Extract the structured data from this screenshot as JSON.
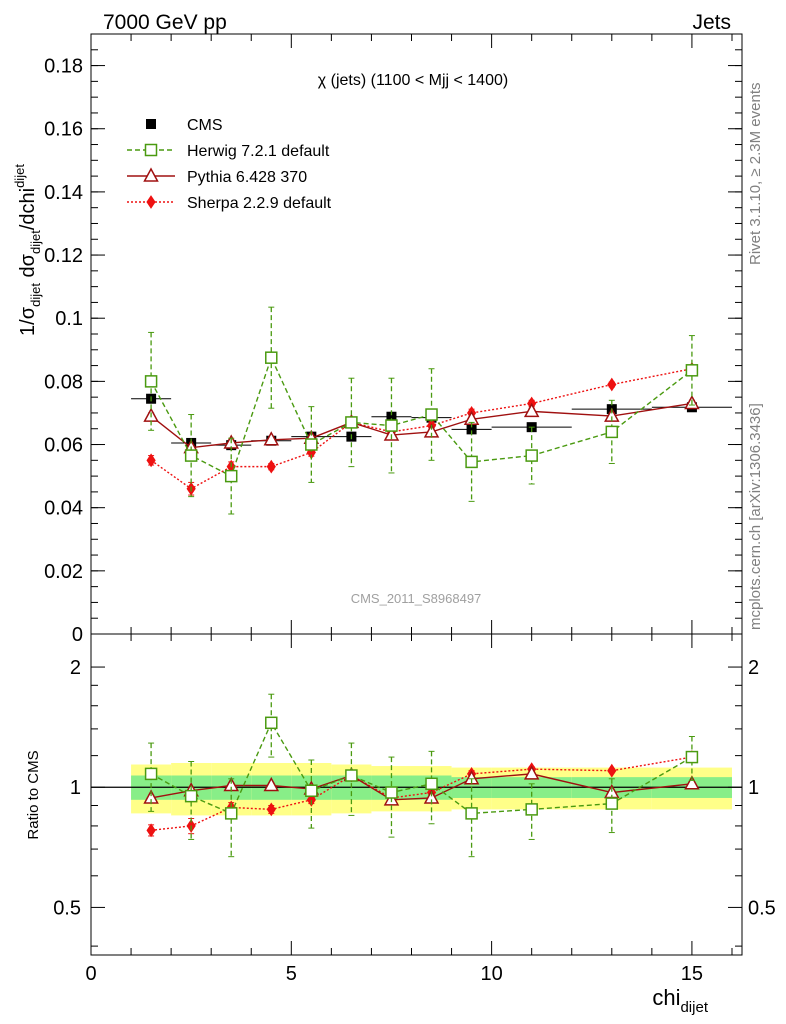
{
  "header": {
    "energy_label": "7000 GeV pp",
    "category_label": "Jets",
    "side_top": "Rivet 3.1.10, ≥ 2.3M events",
    "side_bottom": "mcplots.cern.ch [arXiv:1306.3436]",
    "watermark": "CMS_2011_S8968497"
  },
  "chart_data": [
    {
      "type": "line",
      "panel": "main",
      "title": "χ (jets) (1100 < Mjj < 1400)",
      "ylabel_main": "1/σ",
      "ylabel_sub1": "dijet",
      "ylabel_mid": " dσ",
      "ylabel_sub2": "dijet",
      "ylabel_end": "/dchi",
      "ylabel_sub3": "dijet",
      "xlim": [
        0,
        16.25
      ],
      "ylim": [
        0,
        0.19
      ],
      "yticks": [
        0,
        0.02,
        0.04,
        0.06,
        0.08,
        0.1,
        0.12,
        0.14,
        0.16,
        0.18
      ],
      "ytick_labels": [
        "0",
        "0.02",
        "0.04",
        "0.06",
        "0.08",
        "0.1",
        "0.12",
        "0.14",
        "0.16",
        "0.18"
      ],
      "legend_position": "top-left",
      "series": [
        {
          "name": "CMS",
          "color": "#000000",
          "style": "data",
          "x": [
            1.5,
            2.5,
            3.5,
            4.5,
            5.5,
            6.5,
            7.5,
            8.5,
            9.5,
            11.0,
            13.0,
            15.0
          ],
          "xerr": [
            0.5,
            0.5,
            0.5,
            0.5,
            0.5,
            0.5,
            0.5,
            0.5,
            0.5,
            1.0,
            1.0,
            1.0
          ],
          "values": [
            0.0745,
            0.0605,
            0.0598,
            0.0612,
            0.0625,
            0.0625,
            0.0688,
            0.0685,
            0.0648,
            0.0655,
            0.0712,
            0.0718
          ]
        },
        {
          "name": "Herwig 7.2.1 default",
          "color": "#4a9a10",
          "style": "dashed-open-square",
          "x": [
            1.5,
            2.5,
            3.5,
            4.5,
            5.5,
            6.5,
            7.5,
            8.5,
            9.5,
            11.0,
            13.0,
            15.0
          ],
          "values": [
            0.08,
            0.0565,
            0.05,
            0.0875,
            0.06,
            0.067,
            0.066,
            0.0695,
            0.0545,
            0.0565,
            0.064,
            0.0835
          ],
          "errors": [
            0.0155,
            0.013,
            0.012,
            0.016,
            0.012,
            0.014,
            0.015,
            0.0145,
            0.0125,
            0.009,
            0.01,
            0.011
          ]
        },
        {
          "name": "Pythia 6.428 370",
          "color": "#a01010",
          "style": "solid-open-triangle",
          "x": [
            1.5,
            2.5,
            3.5,
            4.5,
            5.5,
            6.5,
            7.5,
            8.5,
            9.5,
            11.0,
            13.0,
            15.0
          ],
          "values": [
            0.069,
            0.059,
            0.0605,
            0.0615,
            0.062,
            0.067,
            0.063,
            0.064,
            0.068,
            0.0705,
            0.069,
            0.073
          ],
          "errors": [
            0.001,
            0.001,
            0.001,
            0.001,
            0.001,
            0.001,
            0.001,
            0.001,
            0.001,
            0.001,
            0.001,
            0.001
          ]
        },
        {
          "name": "Sherpa 2.2.9 default",
          "color": "#ee1111",
          "style": "dotted-filled-diamond",
          "x": [
            1.5,
            2.5,
            3.5,
            4.5,
            5.5,
            6.5,
            7.5,
            8.5,
            9.5,
            11.0,
            13.0,
            15.0
          ],
          "values": [
            0.055,
            0.046,
            0.053,
            0.053,
            0.0575,
            0.067,
            0.064,
            0.066,
            0.07,
            0.073,
            0.079,
            0.084
          ],
          "errors": [
            0.0015,
            0.002,
            0.0015,
            0.001,
            0.0012,
            0.0012,
            0.0012,
            0.0012,
            0.0012,
            0.001,
            0.0008,
            0.0008
          ]
        }
      ]
    },
    {
      "type": "line",
      "panel": "ratio",
      "ylabel": "Ratio to CMS",
      "xlabel": "chi",
      "xlabel_sub": "dijet",
      "xlim": [
        0,
        16.25
      ],
      "ylim": [
        0.38,
        2.42
      ],
      "yscale": "log",
      "yticks": [
        0.5,
        1,
        2
      ],
      "ytick_labels": [
        "0.5",
        "1",
        "2"
      ],
      "xticks": [
        0,
        5,
        10,
        15
      ],
      "xtick_labels": [
        "0",
        "5",
        "10",
        "15"
      ],
      "band_x": [
        1.0,
        2.0,
        3.0,
        4.0,
        5.0,
        6.0,
        7.0,
        8.0,
        9.0,
        10.0,
        12.0,
        14.0,
        16.0
      ],
      "band_inner": [
        0.07,
        0.07,
        0.07,
        0.07,
        0.07,
        0.07,
        0.07,
        0.07,
        0.06,
        0.06,
        0.06,
        0.06
      ],
      "band_outer": [
        0.14,
        0.15,
        0.15,
        0.15,
        0.15,
        0.14,
        0.13,
        0.13,
        0.12,
        0.12,
        0.12,
        0.12
      ],
      "series": [
        {
          "name": "Herwig 7.2.1 default",
          "x": [
            1.5,
            2.5,
            3.5,
            4.5,
            5.5,
            6.5,
            7.5,
            8.5,
            9.5,
            11.0,
            13.0,
            15.0
          ],
          "values": [
            1.08,
            0.95,
            0.86,
            1.45,
            0.98,
            1.07,
            0.97,
            1.02,
            0.86,
            0.88,
            0.91,
            1.19
          ],
          "errors": [
            0.21,
            0.21,
            0.19,
            0.26,
            0.19,
            0.22,
            0.22,
            0.21,
            0.19,
            0.14,
            0.14,
            0.15
          ]
        },
        {
          "name": "Pythia 6.428 370",
          "x": [
            1.5,
            2.5,
            3.5,
            4.5,
            5.5,
            6.5,
            7.5,
            8.5,
            9.5,
            11.0,
            13.0,
            15.0
          ],
          "values": [
            0.94,
            0.98,
            1.01,
            1.01,
            0.99,
            1.07,
            0.93,
            0.94,
            1.05,
            1.08,
            0.97,
            1.02
          ],
          "errors": [
            0.015,
            0.015,
            0.015,
            0.015,
            0.015,
            0.015,
            0.015,
            0.015,
            0.015,
            0.015,
            0.015,
            0.015
          ]
        },
        {
          "name": "Sherpa 2.2.9 default",
          "x": [
            1.5,
            2.5,
            3.5,
            4.5,
            5.5,
            6.5,
            7.5,
            8.5,
            9.5,
            11.0,
            13.0,
            15.0
          ],
          "values": [
            0.78,
            0.8,
            0.89,
            0.88,
            0.93,
            1.07,
            0.94,
            0.97,
            1.08,
            1.11,
            1.1,
            1.19
          ],
          "errors": [
            0.025,
            0.035,
            0.025,
            0.02,
            0.02,
            0.02,
            0.02,
            0.02,
            0.02,
            0.015,
            0.012,
            0.012
          ]
        }
      ]
    }
  ]
}
